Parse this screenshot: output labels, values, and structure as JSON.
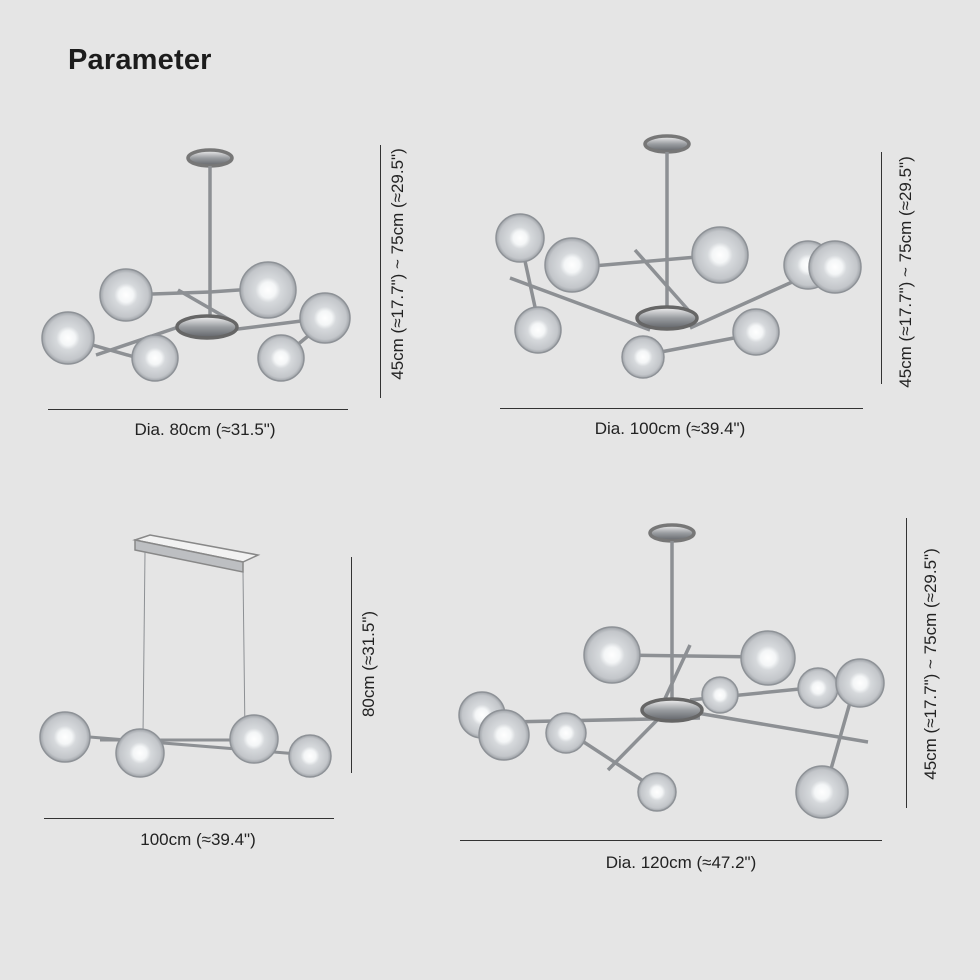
{
  "header": {
    "title": "Parameter"
  },
  "products": [
    {
      "width_label": "Dia. 80cm (≈31.5\")",
      "height_label": "45cm (≈17.7\") ~ 75cm (≈29.5\")"
    },
    {
      "width_label": "Dia. 100cm (≈39.4\")",
      "height_label": "45cm (≈17.7\") ~ 75cm (≈29.5\")"
    },
    {
      "width_label": "100cm (≈39.4\")",
      "height_label": "80cm (≈31.5\")"
    },
    {
      "width_label": "Dia. 120cm (≈47.2\")",
      "height_label": "45cm (≈17.7\") ~ 75cm (≈29.5\")"
    }
  ],
  "colors": {
    "background": "#e5e5e5",
    "chrome": "#a9acb0",
    "glass": "#c9ccd0",
    "line": "#333333"
  }
}
